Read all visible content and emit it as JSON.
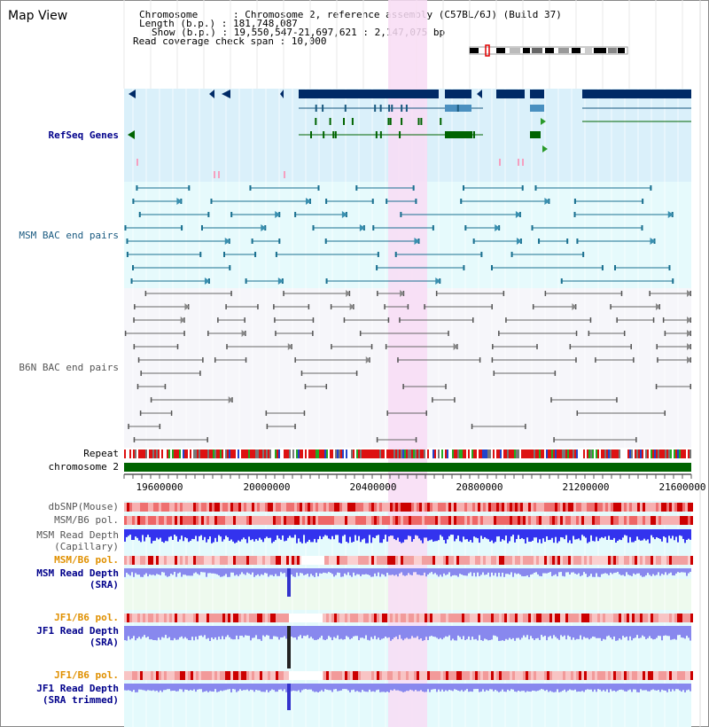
{
  "title": "Map View",
  "info": {
    "chromosome": "Chromosome      : Chromosome 2, reference assembly (C57BL/6J) (Build 37)",
    "length": "Length (b.p.) : 181,748,087",
    "show": "Show (b.p.) : 19,550,547-21,697,621 : 2,147,075 bp",
    "coverage": "Read coverage check span : 10,000"
  },
  "tracks": {
    "refseq": "RefSeq Genes",
    "msm_bac": "MSM BAC end pairs",
    "b6n_bac": "B6N BAC end pairs",
    "repeat": "Repeat",
    "chromosome": "chromosome 2",
    "dbsnp": "dbSNP(Mouse)",
    "msm_b6_pol_1": "MSM/B6 pol.",
    "msm_read_depth_cap_1": "MSM Read Depth",
    "msm_read_depth_cap_2": "(Capillary)",
    "msm_b6_pol_2": "MSM/B6 pol.",
    "msm_read_depth_sra_1": "MSM Read Depth",
    "msm_read_depth_sra_2": "(SRA)",
    "jf1_b6_pol_1": "JF1/B6 pol.",
    "jf1_read_depth_sra_1": "JF1 Read Depth",
    "jf1_read_depth_sra_2": "(SRA)",
    "jf1_b6_pol_2": "JF1/B6 pol.",
    "jf1_read_depth_trim_1": "JF1 Read Depth",
    "jf1_read_depth_trim_2": "(SRA trimmed)"
  },
  "axis": {
    "ticks": [
      "19600000",
      "20000000",
      "20400000",
      "20800000",
      "21200000",
      "21600000"
    ]
  },
  "colors": {
    "refseq_bg": "#daf0fa",
    "msm_bg": "#e6fafc",
    "b6n_bg": "#f6f6fa",
    "highlight": "#f8dcf4",
    "gene_blue": "#002a66",
    "gene_steel": "#4a90c0",
    "gene_green": "#006400",
    "chromosome_bar": "#006400",
    "depth_blue": "#3333ee",
    "depth_light": "#8888ee",
    "label_blue": "#00008b",
    "label_orange": "#e09000"
  }
}
